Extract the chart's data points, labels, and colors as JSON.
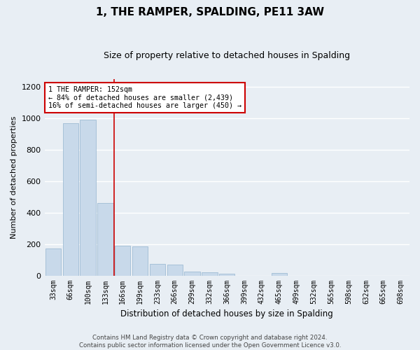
{
  "title": "1, THE RAMPER, SPALDING, PE11 3AW",
  "subtitle": "Size of property relative to detached houses in Spalding",
  "xlabel": "Distribution of detached houses by size in Spalding",
  "ylabel": "Number of detached properties",
  "bar_color": "#c8d9ea",
  "bar_edge_color": "#a0bcd4",
  "categories": [
    "33sqm",
    "66sqm",
    "100sqm",
    "133sqm",
    "166sqm",
    "199sqm",
    "233sqm",
    "266sqm",
    "299sqm",
    "332sqm",
    "366sqm",
    "399sqm",
    "432sqm",
    "465sqm",
    "499sqm",
    "532sqm",
    "565sqm",
    "598sqm",
    "632sqm",
    "665sqm",
    "698sqm"
  ],
  "values": [
    170,
    970,
    990,
    460,
    190,
    185,
    75,
    70,
    25,
    22,
    12,
    0,
    0,
    18,
    0,
    0,
    0,
    0,
    0,
    0,
    0
  ],
  "ylim": [
    0,
    1250
  ],
  "yticks": [
    0,
    200,
    400,
    600,
    800,
    1000,
    1200
  ],
  "red_line_x": 3.5,
  "red_line_color": "#cc0000",
  "annotation_title": "1 THE RAMPER: 152sqm",
  "annotation_line1": "← 84% of detached houses are smaller (2,439)",
  "annotation_line2": "16% of semi-detached houses are larger (450) →",
  "annotation_box_color": "#ffffff",
  "annotation_box_edge": "#cc0000",
  "footer_line1": "Contains HM Land Registry data © Crown copyright and database right 2024.",
  "footer_line2": "Contains public sector information licensed under the Open Government Licence v3.0.",
  "bg_color": "#e8eef4",
  "grid_color": "#ffffff",
  "title_fontsize": 11,
  "subtitle_fontsize": 9
}
